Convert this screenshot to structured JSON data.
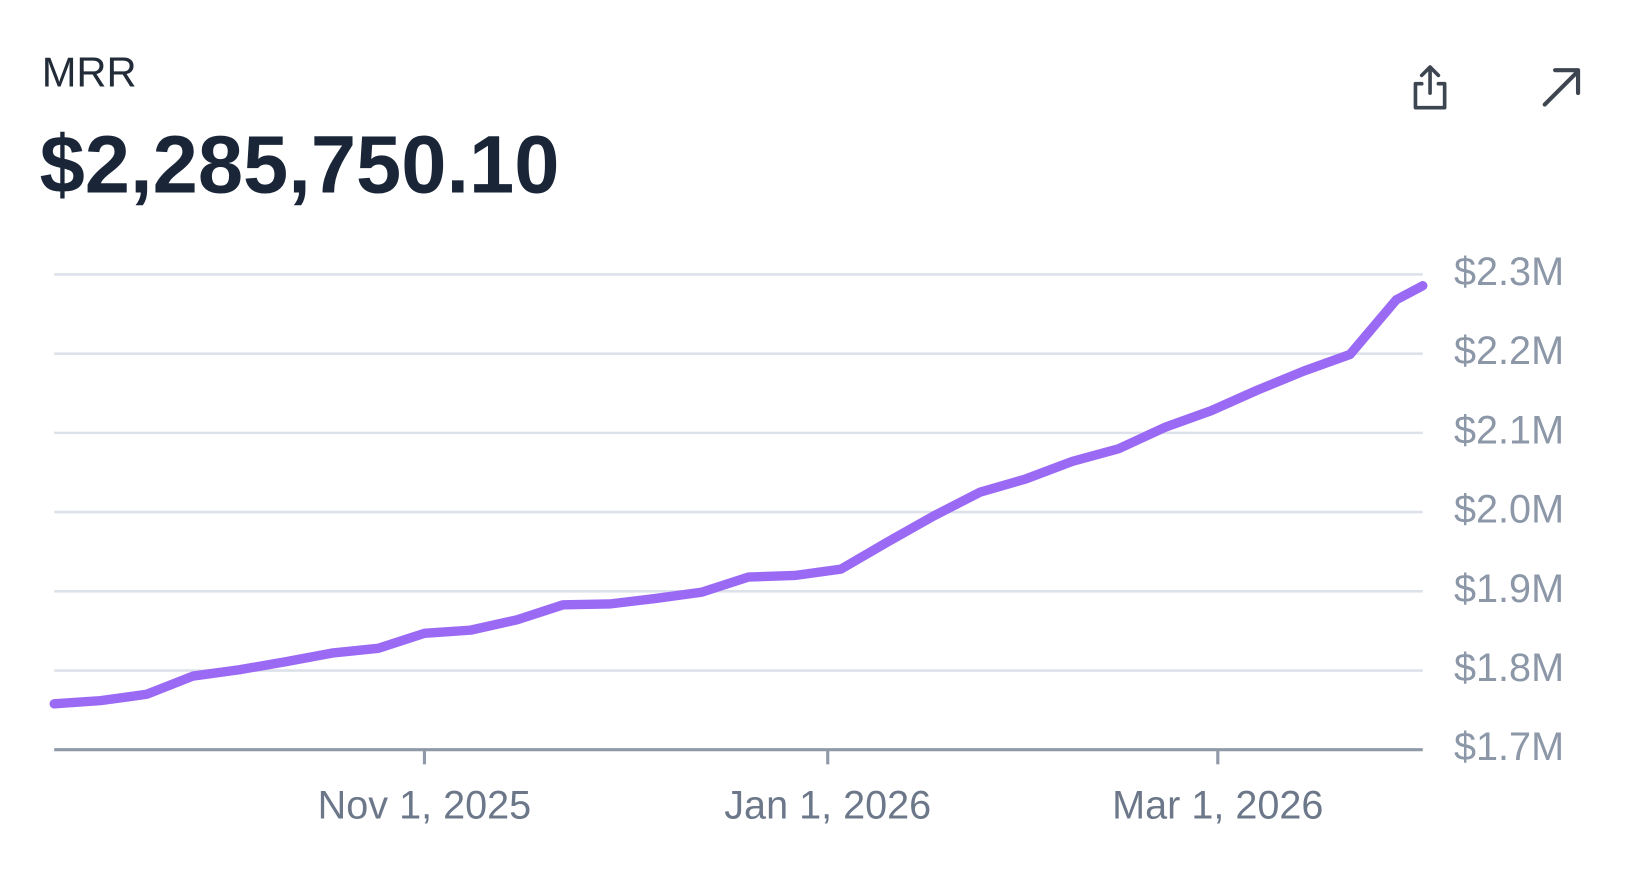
{
  "chart_data": {
    "type": "line",
    "title": "MRR",
    "subtitle": "$2,285,750.10",
    "x": [
      "2025-09-06",
      "2025-09-13",
      "2025-09-20",
      "2025-09-27",
      "2025-10-04",
      "2025-10-11",
      "2025-10-18",
      "2025-10-25",
      "2025-11-01",
      "2025-11-08",
      "2025-11-15",
      "2025-11-22",
      "2025-11-29",
      "2025-12-06",
      "2025-12-13",
      "2025-12-20",
      "2025-12-27",
      "2026-01-03",
      "2026-01-10",
      "2026-01-17",
      "2026-01-24",
      "2026-01-31",
      "2026-02-07",
      "2026-02-14",
      "2026-02-21",
      "2026-02-28",
      "2026-03-07",
      "2026-03-14",
      "2026-03-21",
      "2026-03-28",
      "2026-04-01"
    ],
    "series": [
      {
        "name": "MRR",
        "color": "#9b6af5",
        "values": [
          1758000,
          1762000,
          1770000,
          1793000,
          1801000,
          1811000,
          1822000,
          1828000,
          1847000,
          1851000,
          1864000,
          1883000,
          1884000,
          1891000,
          1899000,
          1918000,
          1920000,
          1928000,
          1962000,
          1995000,
          2025000,
          2042000,
          2064000,
          2080000,
          2107000,
          2128000,
          2154000,
          2178000,
          2199000,
          2268000,
          2285750.1
        ]
      }
    ],
    "xlim": [
      "2025-09-06",
      "2026-04-01"
    ],
    "xticks": [
      {
        "value": "2025-11-01",
        "label": "Nov 1, 2025"
      },
      {
        "value": "2026-01-01",
        "label": "Jan 1, 2026"
      },
      {
        "value": "2026-03-01",
        "label": "Mar 1, 2026"
      }
    ],
    "ylim": [
      1700000,
      2300000
    ],
    "yticks": [
      {
        "value": 1700000,
        "label": "$1.7M"
      },
      {
        "value": 1800000,
        "label": "$1.8M"
      },
      {
        "value": 1900000,
        "label": "$1.9M"
      },
      {
        "value": 2000000,
        "label": "$2.0M"
      },
      {
        "value": 2100000,
        "label": "$2.1M"
      },
      {
        "value": 2200000,
        "label": "$2.2M"
      },
      {
        "value": 2300000,
        "label": "$2.3M"
      }
    ],
    "grid": true
  }
}
